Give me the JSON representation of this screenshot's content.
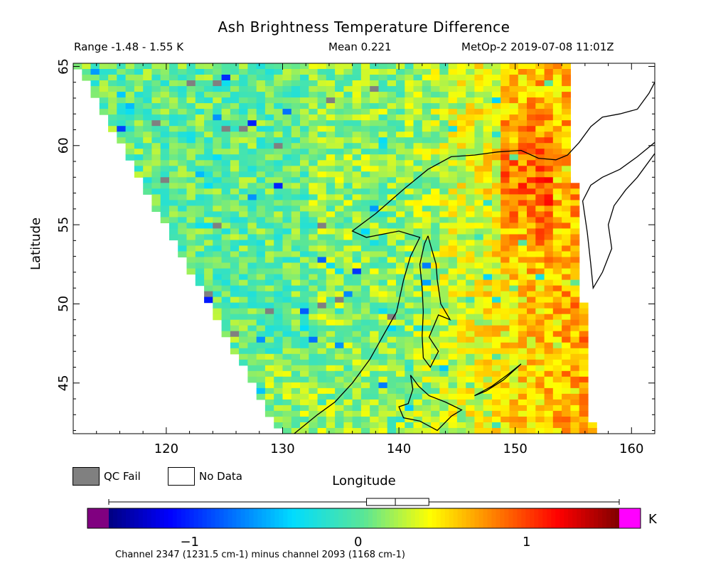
{
  "chart_data": {
    "type": "heatmap",
    "title": "Ash Brightness Temperature Difference",
    "subtitle_left": "Range -1.48 - 1.55 K",
    "subtitle_mid": "Mean 0.221",
    "subtitle_right": "MetOp-2 2019-07-08 11:01Z",
    "xlabel": "Longitude",
    "ylabel": "Latitude",
    "xlim": [
      112,
      162
    ],
    "ylim": [
      41.8,
      65.2
    ],
    "x_ticks": [
      120,
      130,
      140,
      150,
      160
    ],
    "y_ticks": [
      45,
      50,
      55,
      60,
      65
    ],
    "x_tick_labels": [
      "120",
      "130",
      "140",
      "150",
      "160"
    ],
    "y_tick_labels": [
      "45",
      "50",
      "55",
      "60",
      "65"
    ],
    "range": [
      -1.48,
      1.55
    ],
    "mean": 0.221,
    "units": "K",
    "colorbar": {
      "min": -1.48,
      "max": 1.55,
      "tick_values": [
        -1,
        0,
        1
      ],
      "tick_labels": [
        "−1",
        "0",
        "1"
      ],
      "unit_label": "K",
      "under_color": "#800080",
      "over_color": "#ff00ff",
      "boxplot": {
        "min": -1.48,
        "q1": 0.05,
        "median": 0.221,
        "q3": 0.42,
        "max": 1.55
      }
    },
    "legend": [
      {
        "label": "QC Fail",
        "color": "#808080"
      },
      {
        "label": "No Data",
        "color": "#ffffff"
      }
    ],
    "footnote": "Channel 2347 (1231.5 cm-1) minus channel 2093 (1168 cm-1)"
  },
  "colors": {
    "qc_fail": "#808080",
    "no_data": "#ffffff",
    "coastline": "#000000"
  }
}
